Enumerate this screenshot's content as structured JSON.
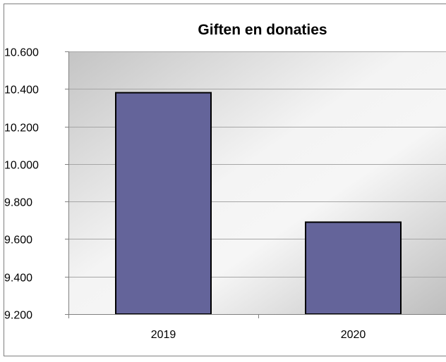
{
  "chart_data": {
    "type": "bar",
    "title": "Giften en donaties",
    "xlabel": "",
    "ylabel": "",
    "categories": [
      "2019",
      "2020"
    ],
    "values": [
      10380,
      9690
    ],
    "ylim": [
      9200,
      10600
    ],
    "yticks": [
      9200,
      9400,
      9600,
      9800,
      10000,
      10200,
      10400,
      10600
    ],
    "ytick_labels": [
      "9.200",
      "9.400",
      "9.600",
      "9.800",
      "10.000",
      "10.200",
      "10.400",
      "10.600"
    ],
    "grid": true,
    "legend": "none",
    "bar_color": "#64649A",
    "bar_outline": "#000000"
  }
}
